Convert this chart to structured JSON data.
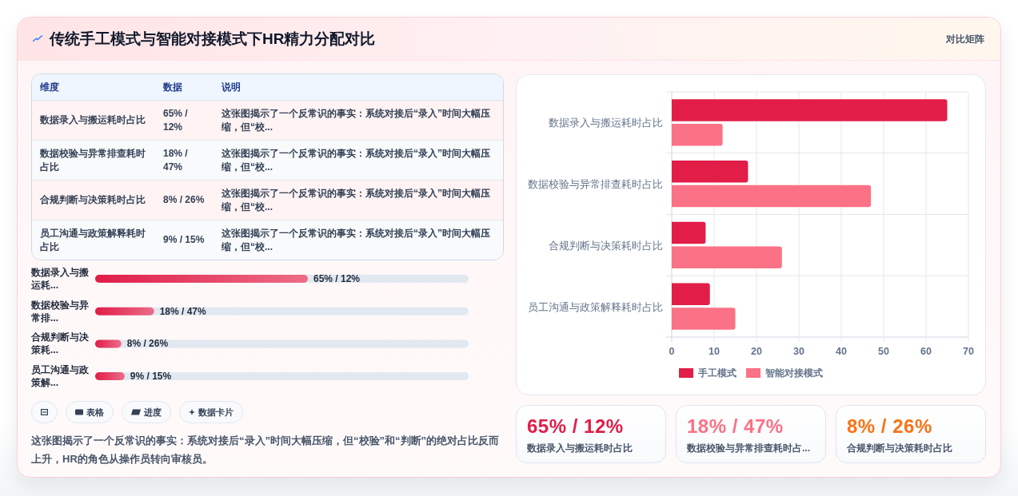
{
  "chart_data": [
    {
      "type": "other",
      "title": "传统手工模式与智能对接模式下HR精力分配对比",
      "annotations": [
        "对比矩阵"
      ]
    },
    {
      "type": "other",
      "categories": [
        "维度",
        "数据",
        "说明"
      ],
      "cell_labels": [
        [
          "数据录入与搬运耗时占比",
          "65% / 12%",
          "这张图揭示了一个反常识的事实：系统对接后“录入”时间大幅压缩，但“校..."
        ],
        [
          "数据校验与异常排查耗时占比",
          "18% / 47%",
          "这张图揭示了一个反常识的事实：系统对接后“录入”时间大幅压缩，但“校..."
        ],
        [
          "合规判断与决策耗时占比",
          "8% / 26%",
          "这张图揭示了一个反常识的事实：系统对接后“录入”时间大幅压缩，但“校..."
        ],
        [
          "员工沟通与政策解释耗时占比",
          "9% / 15%",
          "这张图揭示了一个反常识的事实：系统对接后“录入”时间大幅压缩，但“校..."
        ]
      ]
    },
    {
      "type": "bar",
      "orientation": "horizontal",
      "categories": [
        "数据录入与搬运耗...",
        "数据校验与异常排...",
        "合规判断与决策耗...",
        "员工沟通与政策解..."
      ],
      "values": [
        65,
        18,
        8,
        9
      ],
      "value_labels": [
        "65% / 12%",
        "18% / 47%",
        "8% / 26%",
        "9% / 15%"
      ],
      "color": "#e11d48",
      "tick_labels": "y"
    },
    {
      "type": "other",
      "categories": [
        null,
        "表格",
        "进度",
        "数据卡片"
      ],
      "annotations": [
        "这张图揭示了一个反常识的事实：系统对接后“录入”时间大幅压缩，但“校验”和“判断”的绝对占比反而上升，HR的角色从操作员转向审核员。"
      ]
    },
    {
      "type": "bar",
      "orientation": "horizontal",
      "categories": [
        "数据录入与搬运耗时占比",
        "数据校验与异常排查耗时占比",
        "合规判断与决策耗时占比",
        "员工沟通与政策解释耗时占比"
      ],
      "series": [
        {
          "name": "手工模式",
          "color": "#e11d48",
          "values": [
            65,
            18,
            8,
            9
          ]
        },
        {
          "name": "智能对接模式",
          "color": "#fb7185",
          "values": [
            12,
            47,
            26,
            15
          ]
        }
      ],
      "xlim": [
        0,
        70
      ],
      "xticks": [
        0,
        10,
        20,
        30,
        40,
        50,
        60,
        70
      ],
      "grid": true,
      "legend": "bottom"
    },
    {
      "type": "other",
      "title": "65% / 12%",
      "subtitle": "数据录入与搬运耗时占比",
      "color": "#e11d48"
    },
    {
      "type": "other",
      "title": "18% / 47%",
      "subtitle": "数据校验与异常排查耗时占...",
      "color": "#fb7185"
    },
    {
      "type": "other",
      "title": "8% / 26%",
      "subtitle": "合规判断与决策耗时占比",
      "color": "#f97316"
    }
  ]
}
